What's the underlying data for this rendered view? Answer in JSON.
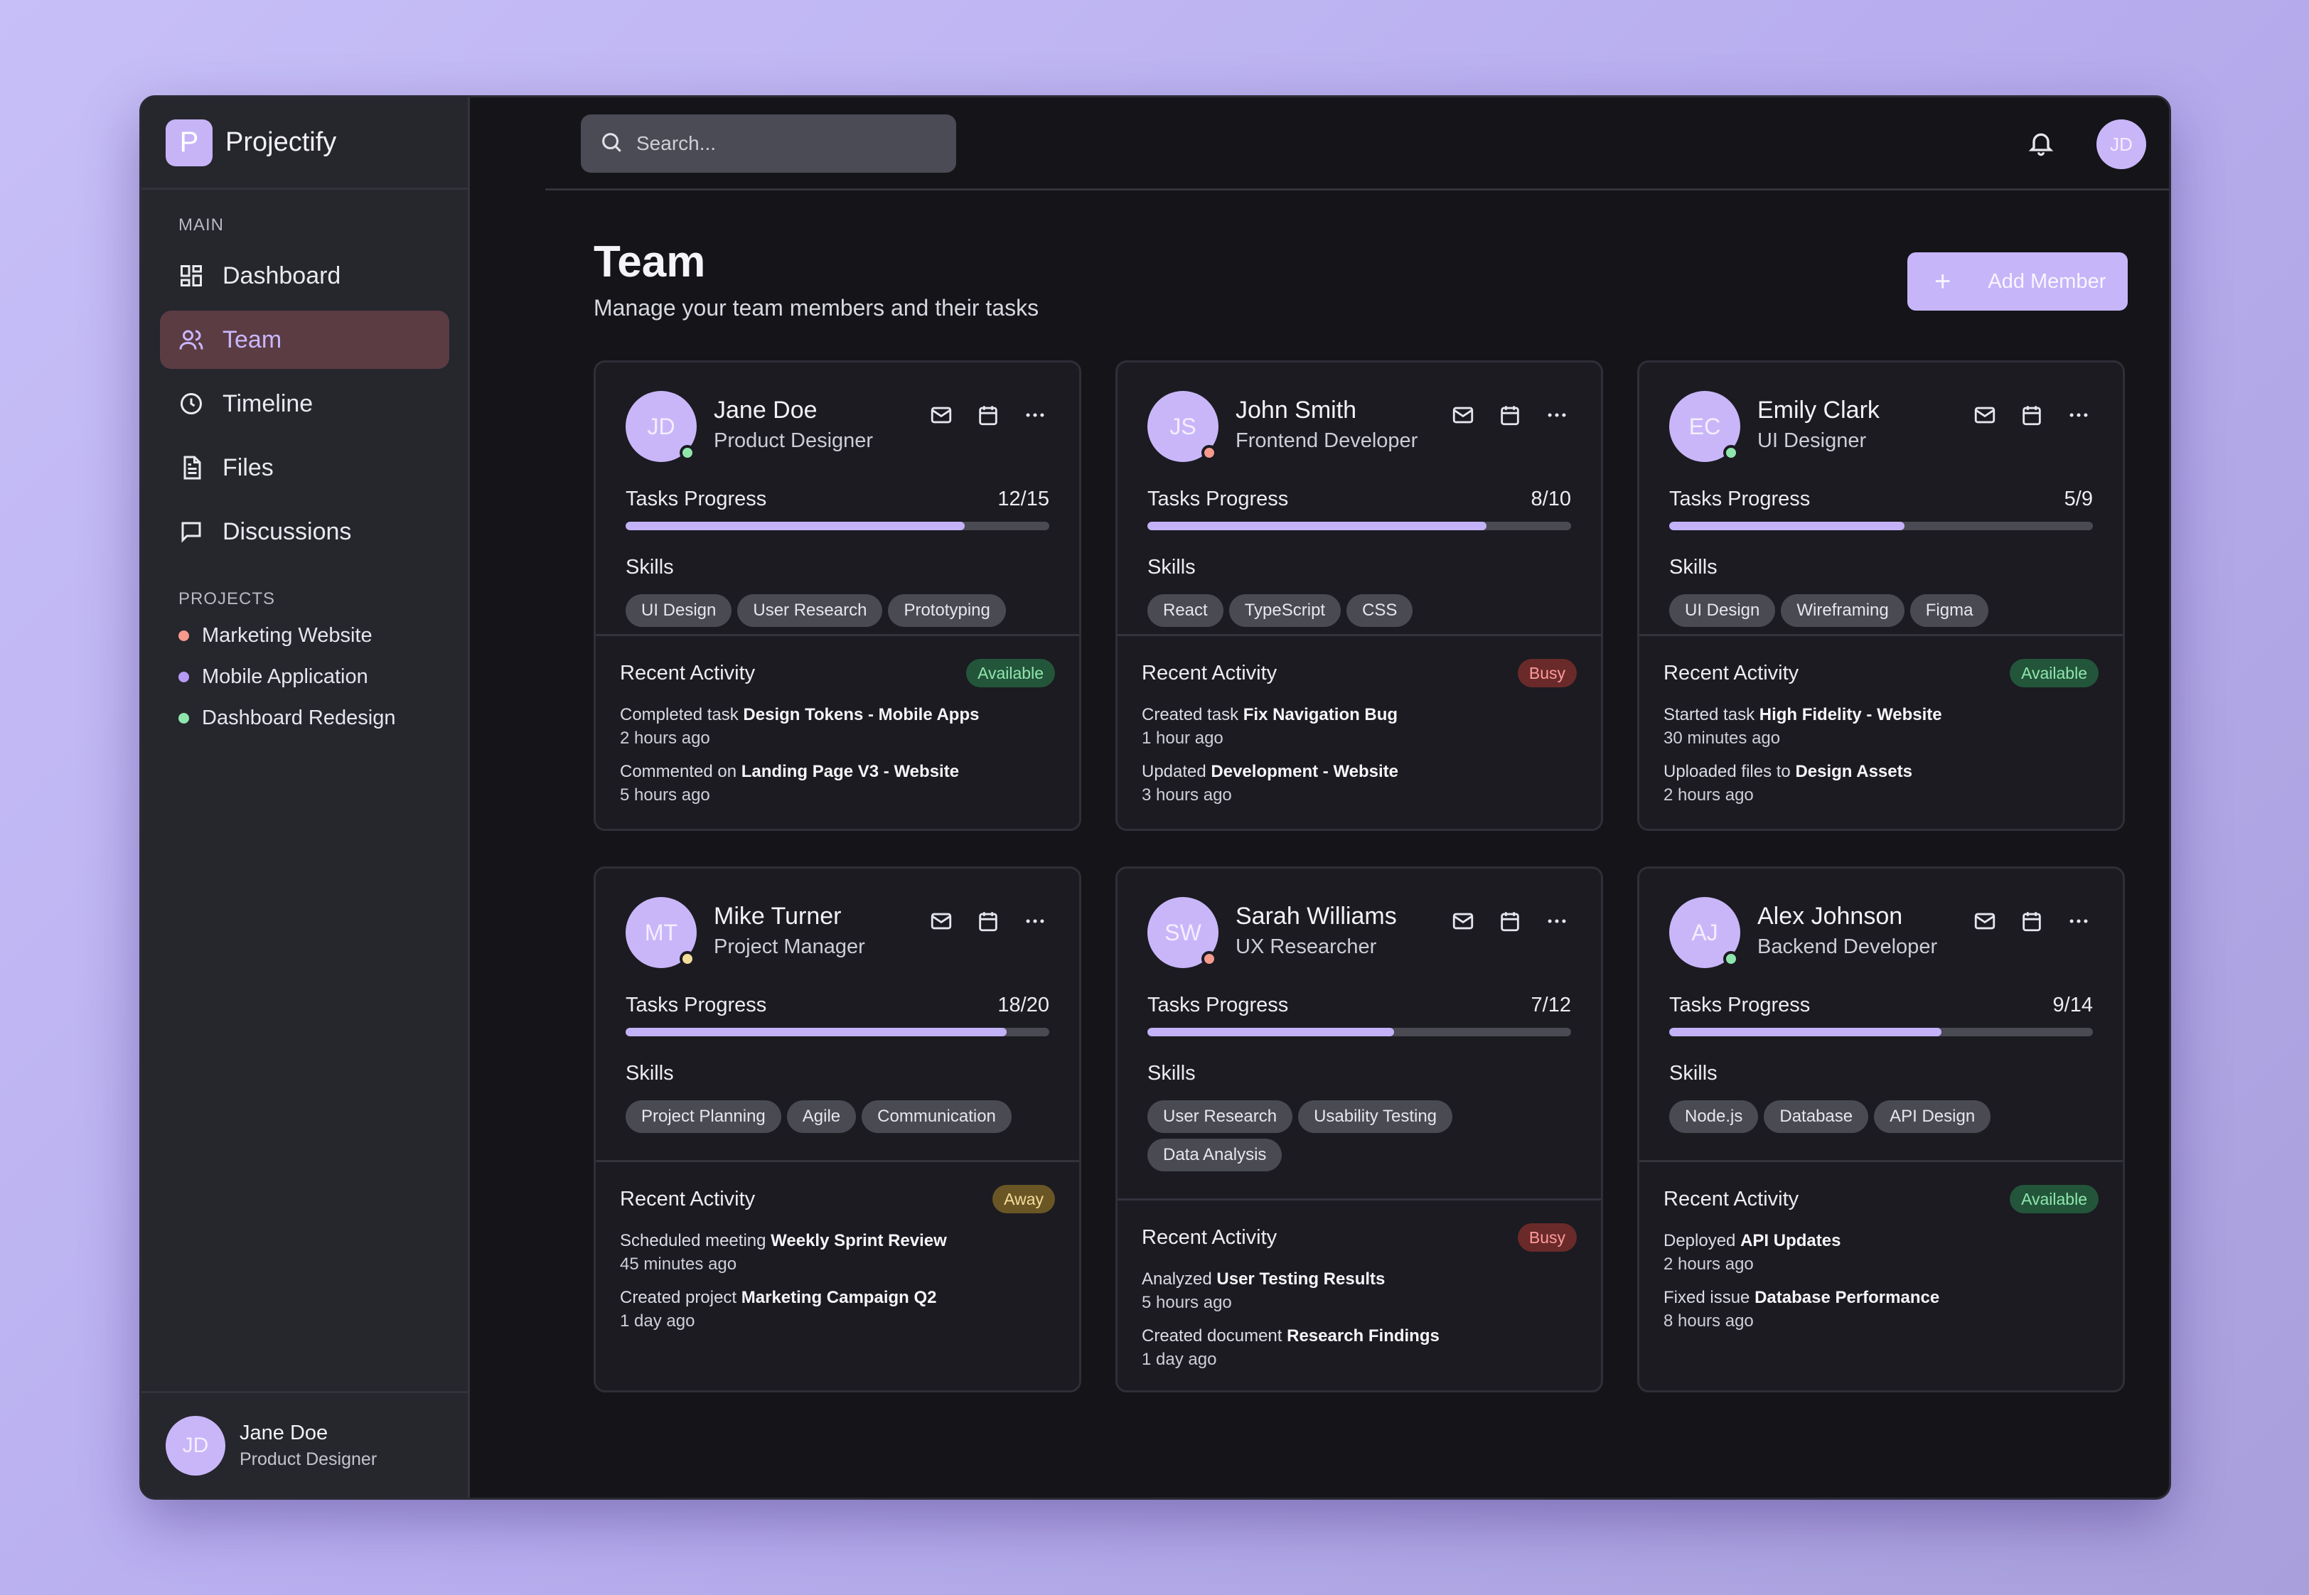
{
  "app": {
    "name": "Projectify",
    "logo_letter": "P"
  },
  "sidebar": {
    "main_label": "MAIN",
    "nav": [
      {
        "label": "Dashboard",
        "icon": "dashboard-icon",
        "active": false
      },
      {
        "label": "Team",
        "icon": "users-icon",
        "active": true
      },
      {
        "label": "Timeline",
        "icon": "clock-icon",
        "active": false
      },
      {
        "label": "Files",
        "icon": "file-icon",
        "active": false
      },
      {
        "label": "Discussions",
        "icon": "chat-icon",
        "active": false
      }
    ],
    "projects_label": "PROJECTS",
    "projects": [
      {
        "label": "Marketing Website",
        "color": "#f59a8c"
      },
      {
        "label": "Mobile Application",
        "color": "#b69cf5"
      },
      {
        "label": "Dashboard Redesign",
        "color": "#8fe6ad"
      }
    ],
    "user": {
      "initials": "JD",
      "name": "Jane Doe",
      "role": "Product Designer"
    }
  },
  "topbar": {
    "search_placeholder": "Search...",
    "user_initials": "JD"
  },
  "page": {
    "title": "Team",
    "subtitle": "Manage your team members and their tasks",
    "add_button": "Add Member"
  },
  "labels": {
    "tasks_progress": "Tasks Progress",
    "skills": "Skills",
    "recent_activity": "Recent Activity"
  },
  "members": [
    {
      "initials": "JD",
      "name": "Jane Doe",
      "role": "Product Designer",
      "status_color": "#8fe6ad",
      "tasks": "12/15",
      "progress": 0.8,
      "skills": [
        "UI Design",
        "User Research",
        "Prototyping"
      ],
      "status": "Available",
      "status_class": "b-available",
      "activities": [
        {
          "prefix": "Completed task ",
          "target": "Design Tokens - Mobile Apps",
          "time": "2 hours ago"
        },
        {
          "prefix": "Commented on ",
          "target": "Landing Page V3 - Website",
          "time": "5 hours ago"
        }
      ]
    },
    {
      "initials": "JS",
      "name": "John Smith",
      "role": "Frontend Developer",
      "status_color": "#f59a8c",
      "tasks": "8/10",
      "progress": 0.8,
      "skills": [
        "React",
        "TypeScript",
        "CSS"
      ],
      "status": "Busy",
      "status_class": "b-busy",
      "activities": [
        {
          "prefix": "Created task ",
          "target": "Fix Navigation Bug",
          "time": "1 hour ago"
        },
        {
          "prefix": "Updated ",
          "target": "Development - Website",
          "time": "3 hours ago"
        }
      ]
    },
    {
      "initials": "EC",
      "name": "Emily Clark",
      "role": "UI Designer",
      "status_color": "#8fe6ad",
      "tasks": "5/9",
      "progress": 0.556,
      "skills": [
        "UI Design",
        "Wireframing",
        "Figma"
      ],
      "status": "Available",
      "status_class": "b-available",
      "activities": [
        {
          "prefix": "Started task ",
          "target": "High Fidelity - Website",
          "time": "30 minutes ago"
        },
        {
          "prefix": "Uploaded files to ",
          "target": "Design Assets",
          "time": "2 hours ago"
        }
      ]
    },
    {
      "initials": "MT",
      "name": "Mike Turner",
      "role": "Project Manager",
      "status_color": "#f4dc9a",
      "tasks": "18/20",
      "progress": 0.9,
      "skills": [
        "Project Planning",
        "Agile",
        "Communication"
      ],
      "status": "Away",
      "status_class": "b-away",
      "activities": [
        {
          "prefix": "Scheduled meeting ",
          "target": "Weekly Sprint Review",
          "time": "45 minutes ago"
        },
        {
          "prefix": "Created project ",
          "target": "Marketing Campaign Q2",
          "time": "1 day ago"
        }
      ]
    },
    {
      "initials": "SW",
      "name": "Sarah Williams",
      "role": "UX Researcher",
      "status_color": "#f59a8c",
      "tasks": "7/12",
      "progress": 0.583,
      "skills": [
        "User Research",
        "Usability Testing",
        "Data Analysis"
      ],
      "status": "Busy",
      "status_class": "b-busy",
      "activities": [
        {
          "prefix": "Analyzed ",
          "target": "User Testing Results",
          "time": "5 hours ago"
        },
        {
          "prefix": "Created document ",
          "target": "Research Findings",
          "time": "1 day ago"
        }
      ]
    },
    {
      "initials": "AJ",
      "name": "Alex Johnson",
      "role": "Backend Developer",
      "status_color": "#8fe6ad",
      "tasks": "9/14",
      "progress": 0.643,
      "skills": [
        "Node.js",
        "Database",
        "API Design"
      ],
      "status": "Available",
      "status_class": "b-available",
      "activities": [
        {
          "prefix": "Deployed ",
          "target": "API Updates",
          "time": "2 hours ago"
        },
        {
          "prefix": "Fixed issue ",
          "target": "Database Performance",
          "time": "8 hours ago"
        }
      ]
    }
  ]
}
